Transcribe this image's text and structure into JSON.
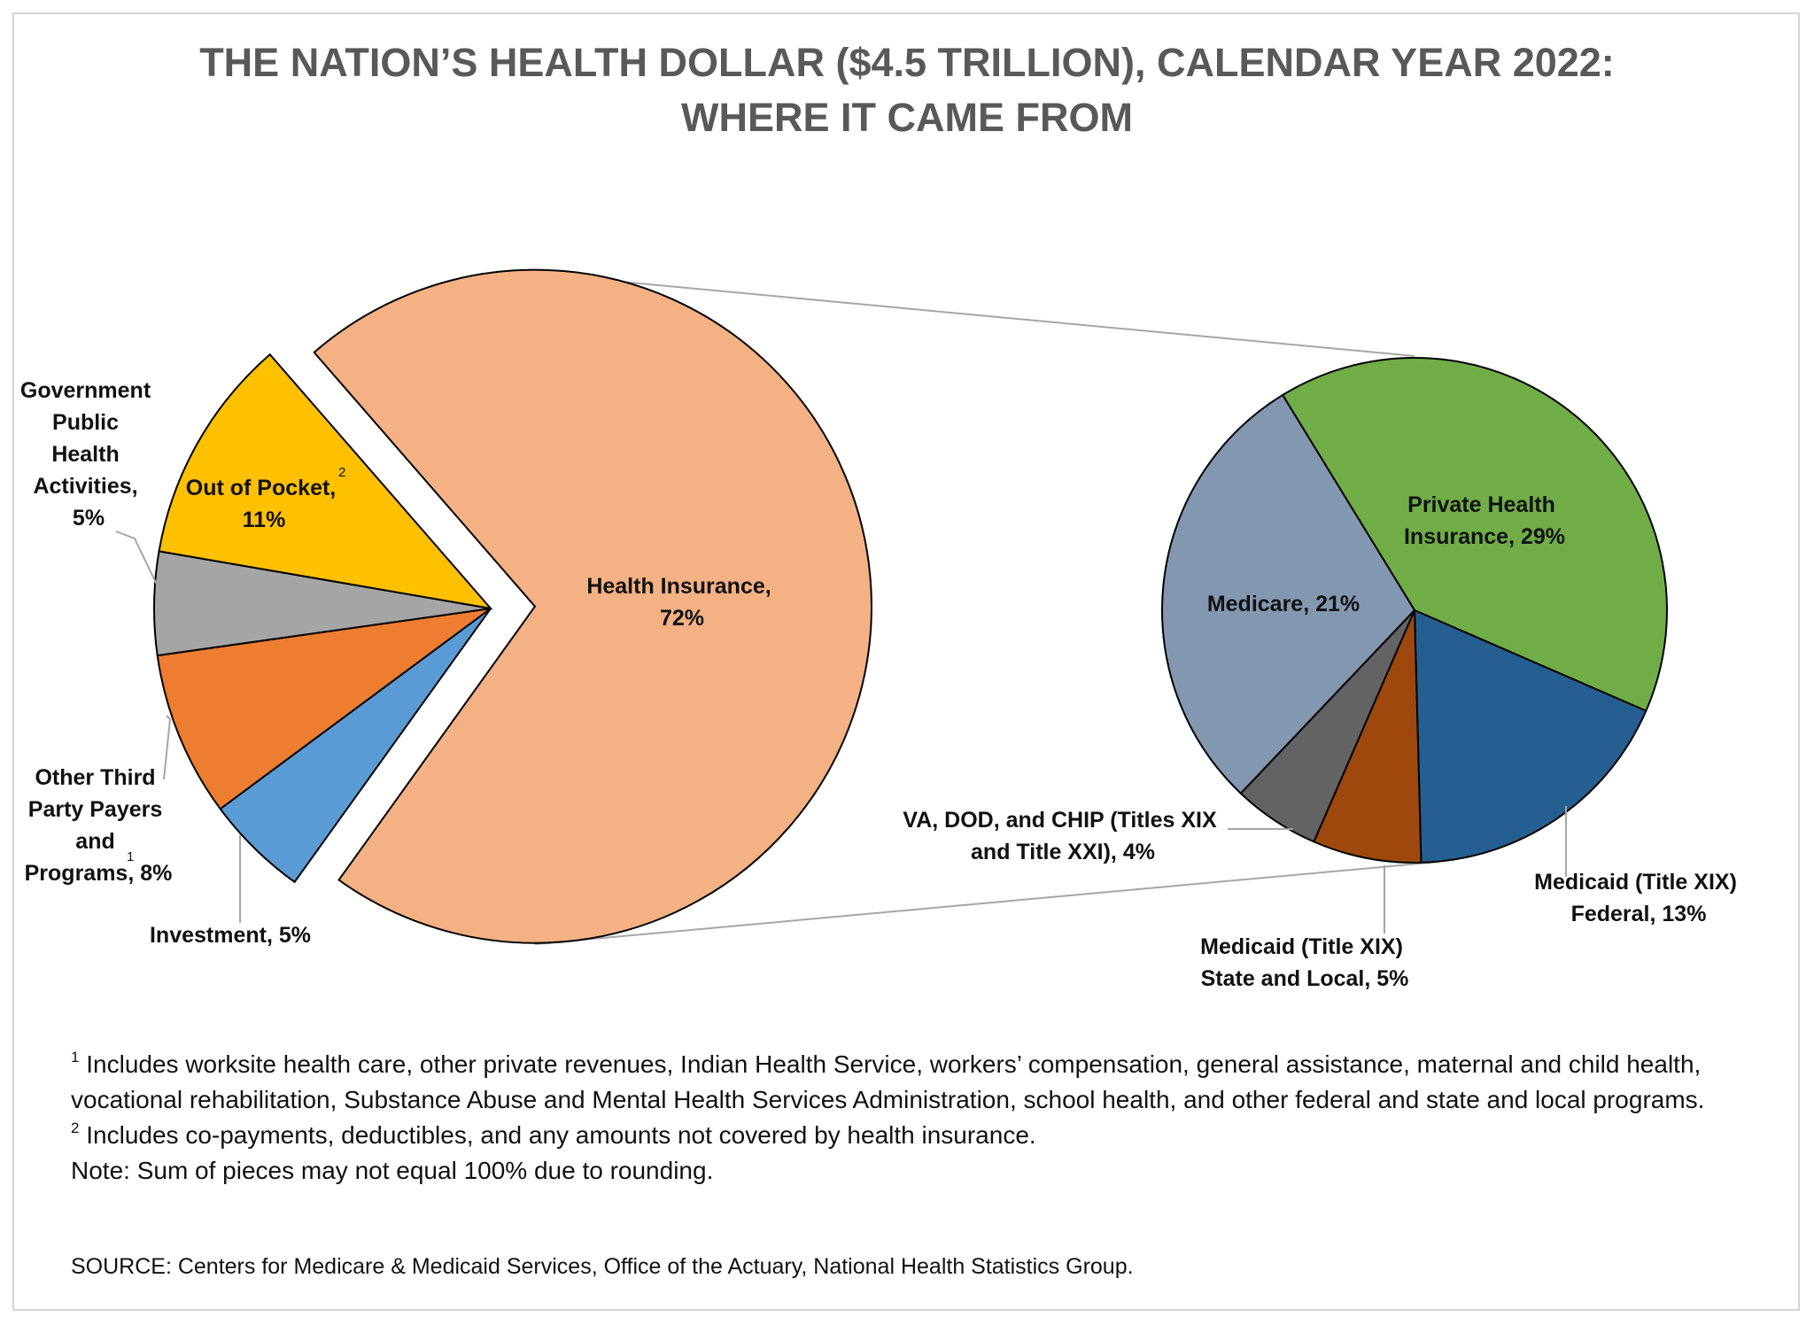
{
  "title": {
    "line1": "THE NATION’S HEALTH DOLLAR ($4.5 TRILLION), CALENDAR YEAR 2022:",
    "line2": "WHERE IT CAME FROM"
  },
  "chart_data": [
    {
      "type": "pie",
      "name": "",
      "slices": [
        {
          "label": "Health Insurance, 72%",
          "value": 72,
          "color": "#f4b183",
          "exploded": true
        },
        {
          "label": "Investment, 5%",
          "value": 5,
          "color": "#5b9bd5"
        },
        {
          "label": "Other Third Party Payers and Programs, 8%",
          "label_sup": "1",
          "value": 8,
          "color": "#ed7d31"
        },
        {
          "label": "Government Public Health Activities, 5%",
          "value": 5,
          "color": "#a5a5a5"
        },
        {
          "label": "Out of Pocket, 11%",
          "label_sup": "2",
          "value": 11,
          "color": "#ffc000"
        }
      ]
    },
    {
      "type": "pie",
      "name": "",
      "breakdown_of": "Health Insurance, 72%",
      "slices": [
        {
          "label": "Private Health Insurance, 29%",
          "value": 29,
          "color": "#70ad47"
        },
        {
          "label": "Medicaid (Title XIX) Federal, 13%",
          "value": 13,
          "color": "#255e91"
        },
        {
          "label": "Medicaid (Title XIX) State and Local, 5%",
          "value": 5,
          "color": "#9e480e"
        },
        {
          "label": "VA, DOD, and CHIP (Titles XIX and Title XXI), 4%",
          "value": 4,
          "color": "#636363"
        },
        {
          "label": "Medicare, 21%",
          "value": 21,
          "color": "#8497b0"
        }
      ]
    }
  ],
  "labels": {
    "health_insurance": [
      "Health Insurance,",
      "72%"
    ],
    "out_of_pocket": [
      "Out of Pocket,",
      "11%"
    ],
    "out_of_pocket_sup": "2",
    "gov_public_health": [
      "Government",
      "Public",
      "Health",
      "Activities,",
      "5%"
    ],
    "other_third_party": [
      "Other Third",
      "Party Payers",
      "and",
      "Programs, 8%"
    ],
    "other_third_party_sup": "1",
    "investment": "Investment, 5%",
    "private_health": [
      "Private Health",
      "Insurance, 29%"
    ],
    "medicare": "Medicare, 21%",
    "va_dod_chip": [
      "VA, DOD, and CHIP (Titles XIX",
      "and Title XXI), 4%"
    ],
    "medicaid_state": [
      "Medicaid (Title XIX)",
      "State and Local, 5%"
    ],
    "medicaid_federal": [
      "Medicaid (Title XIX)",
      "Federal, 13%"
    ]
  },
  "notes": {
    "note1_marker": "1",
    "note1": "Includes worksite health care, other private revenues, Indian Health Service, workers’ compensation, general assistance, maternal and child health, vocational rehabilitation, Substance Abuse and Mental Health Services Administration, school health, and other federal and state and local programs.",
    "note2_marker": "2",
    "note2": "Includes co-payments, deductibles, and any amounts not covered by health insurance.",
    "note3": "Note: Sum of pieces may not equal 100% due to rounding."
  },
  "source": "SOURCE: Centers for Medicare & Medicaid Services, Office of the Actuary, National Health Statistics Group."
}
